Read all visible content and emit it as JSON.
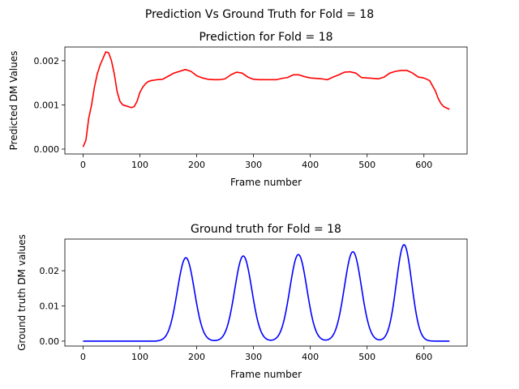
{
  "figure": {
    "suptitle": "Prediction Vs Ground Truth for Fold = 18"
  },
  "chart_data": [
    {
      "type": "line",
      "title": "Prediction for Fold = 18",
      "xlabel": "Frame number",
      "ylabel": "Predicted DM Values",
      "xlim": [
        -32,
        676
      ],
      "ylim": [
        -0.00011,
        0.00231
      ],
      "xticks": [
        0,
        100,
        200,
        300,
        400,
        500,
        600
      ],
      "xtick_labels": [
        "0",
        "100",
        "200",
        "300",
        "400",
        "500",
        "600"
      ],
      "yticks": [
        0.0,
        0.001,
        0.002
      ],
      "ytick_labels": [
        "0.000",
        "0.001",
        "0.002"
      ],
      "grid": false,
      "series": [
        {
          "color": "#ff0000",
          "x": [
            0,
            5,
            10,
            15,
            20,
            25,
            30,
            35,
            40,
            45,
            50,
            55,
            60,
            65,
            70,
            75,
            80,
            85,
            90,
            95,
            100,
            105,
            110,
            115,
            120,
            130,
            140,
            150,
            160,
            170,
            180,
            190,
            200,
            210,
            220,
            230,
            240,
            250,
            260,
            270,
            280,
            290,
            300,
            310,
            320,
            330,
            340,
            350,
            360,
            370,
            380,
            390,
            400,
            410,
            420,
            430,
            440,
            450,
            460,
            470,
            480,
            490,
            500,
            510,
            520,
            530,
            540,
            550,
            560,
            570,
            580,
            590,
            600,
            610,
            620,
            625,
            630,
            635,
            640,
            645
          ],
          "y": [
            5e-05,
            0.0002,
            0.0007,
            0.001,
            0.0014,
            0.0017,
            0.0019,
            0.00205,
            0.0022,
            0.00218,
            0.002,
            0.0017,
            0.0013,
            0.00108,
            0.001,
            0.00098,
            0.00096,
            0.00094,
            0.00096,
            0.00108,
            0.00128,
            0.0014,
            0.00148,
            0.00153,
            0.00155,
            0.00157,
            0.00158,
            0.00165,
            0.00172,
            0.00176,
            0.0018,
            0.00176,
            0.00166,
            0.00161,
            0.00158,
            0.00157,
            0.00157,
            0.00159,
            0.00168,
            0.00174,
            0.00172,
            0.00163,
            0.00158,
            0.00157,
            0.00157,
            0.00157,
            0.00157,
            0.0016,
            0.00162,
            0.00168,
            0.00168,
            0.00164,
            0.00161,
            0.0016,
            0.00159,
            0.00157,
            0.00163,
            0.00168,
            0.00174,
            0.00175,
            0.00172,
            0.00162,
            0.00161,
            0.0016,
            0.00159,
            0.00163,
            0.00172,
            0.00176,
            0.00178,
            0.00178,
            0.00172,
            0.00163,
            0.00161,
            0.00155,
            0.00132,
            0.00115,
            0.00103,
            0.00096,
            0.00093,
            0.0009
          ]
        }
      ]
    },
    {
      "type": "line",
      "title": "Ground truth for Fold = 18",
      "xlabel": "Frame number",
      "ylabel": "Ground truth DM values",
      "xlim": [
        -32,
        676
      ],
      "ylim": [
        -0.0014,
        0.029
      ],
      "xticks": [
        0,
        100,
        200,
        300,
        400,
        500,
        600
      ],
      "xtick_labels": [
        "0",
        "100",
        "200",
        "300",
        "400",
        "500",
        "600"
      ],
      "yticks": [
        0.0,
        0.01,
        0.02
      ],
      "ytick_labels": [
        "0.00",
        "0.01",
        "0.02"
      ],
      "grid": false,
      "series": [
        {
          "color": "#0000ff",
          "x_start": 0,
          "x_end": 645,
          "baseline": 0.0,
          "active_from": 130,
          "active_to": 625,
          "peaks": [
            {
              "x": 181,
              "y": 0.0237,
              "sigma": 15
            },
            {
              "x": 282,
              "y": 0.0242,
              "sigma": 15
            },
            {
              "x": 379,
              "y": 0.0246,
              "sigma": 15
            },
            {
              "x": 475,
              "y": 0.0254,
              "sigma": 15
            },
            {
              "x": 565,
              "y": 0.0274,
              "sigma": 13.5
            }
          ]
        }
      ]
    }
  ]
}
